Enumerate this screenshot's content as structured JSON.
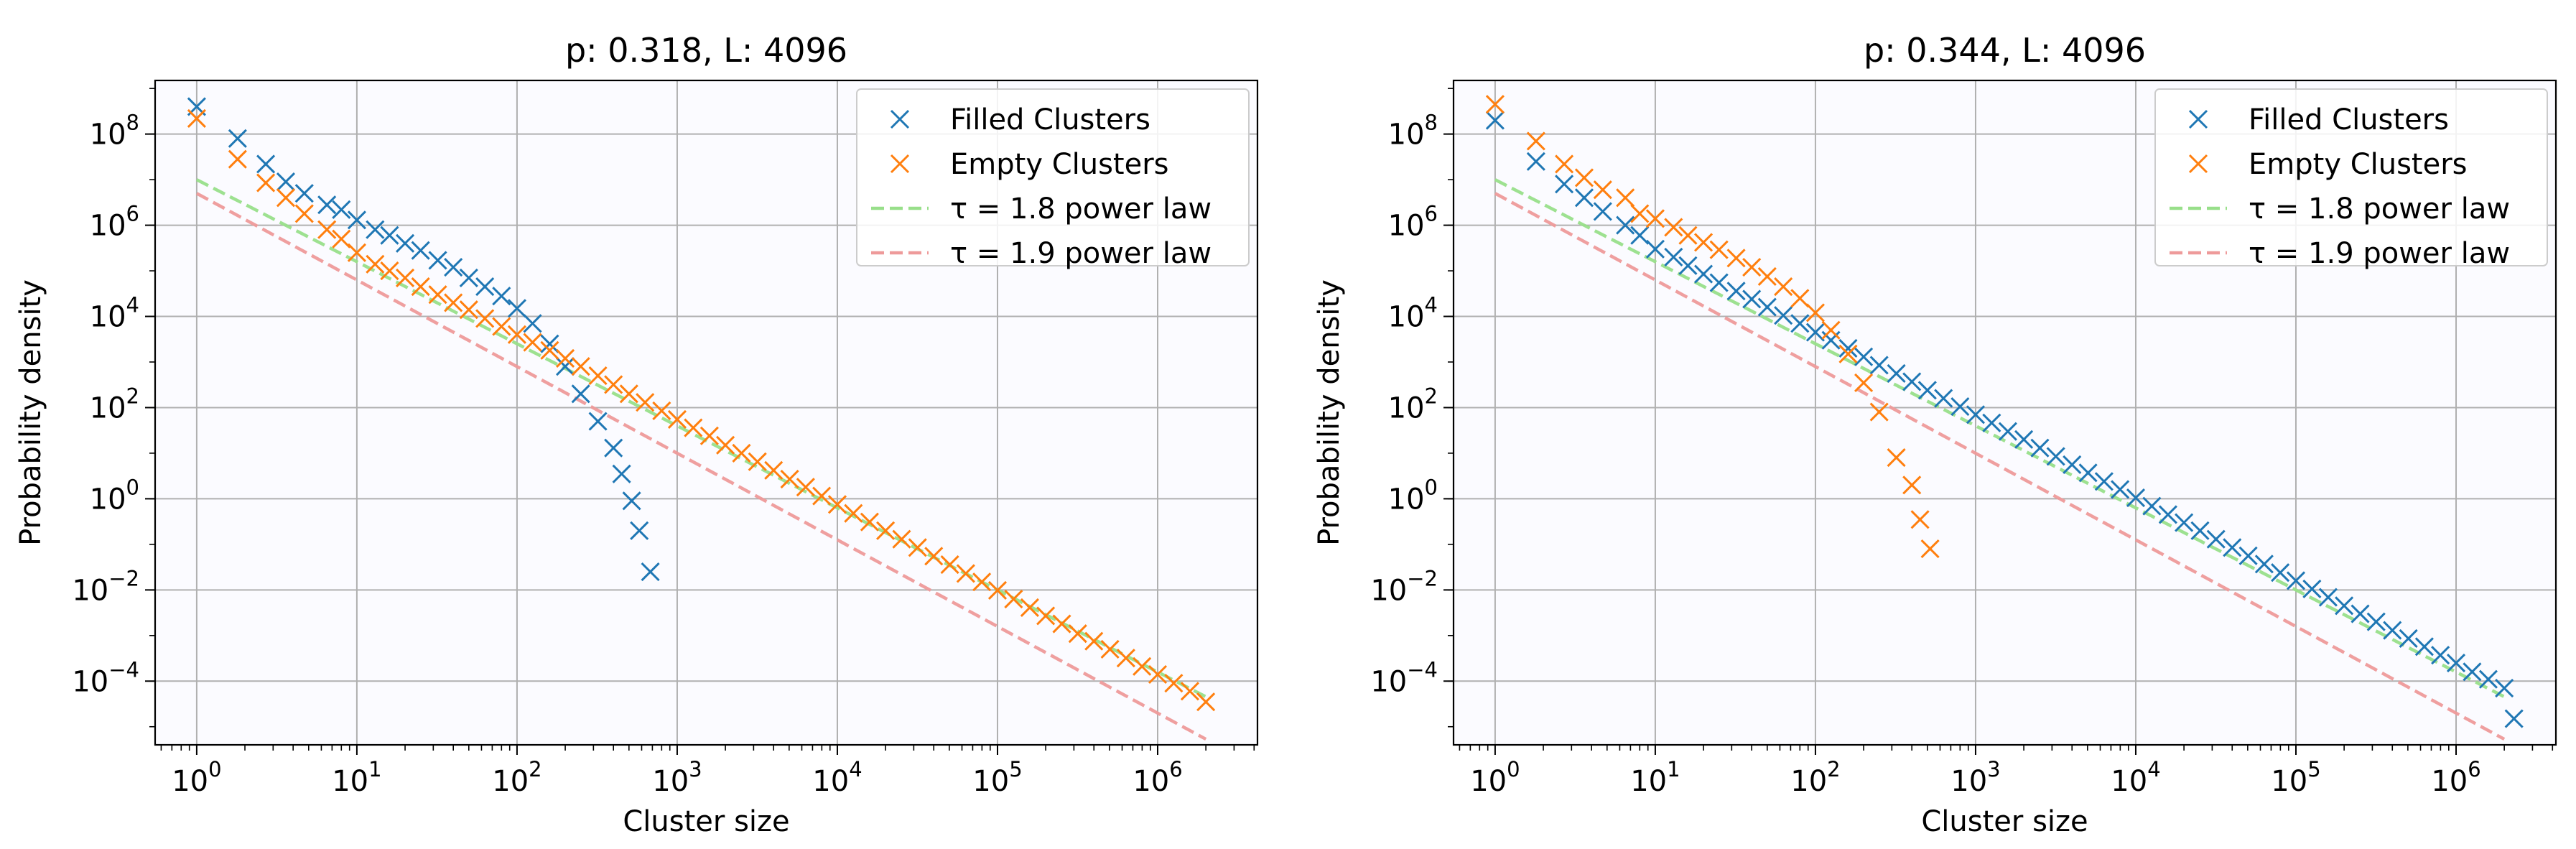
{
  "chart_data": [
    {
      "type": "scatter",
      "title": "p: 0.318,  L: 4096",
      "xlabel": "Cluster size",
      "ylabel": "Probability density",
      "xscale": "log",
      "yscale": "log",
      "xlim": [
        0.55,
        4200000
      ],
      "ylim": [
        4e-06,
        1500000000
      ],
      "grid": true,
      "legend_position": "top-right",
      "x_ticks": [
        {
          "base": "10",
          "exp": "0",
          "v": 1
        },
        {
          "base": "10",
          "exp": "1",
          "v": 10
        },
        {
          "base": "10",
          "exp": "2",
          "v": 100
        },
        {
          "base": "10",
          "exp": "3",
          "v": 1000
        },
        {
          "base": "10",
          "exp": "4",
          "v": 10000
        },
        {
          "base": "10",
          "exp": "5",
          "v": 100000
        },
        {
          "base": "10",
          "exp": "6",
          "v": 1000000
        }
      ],
      "y_ticks": [
        {
          "base": "10",
          "exp": "−4",
          "v": 0.0001
        },
        {
          "base": "10",
          "exp": "−2",
          "v": 0.01
        },
        {
          "base": "10",
          "exp": "0",
          "v": 1
        },
        {
          "base": "10",
          "exp": "2",
          "v": 100
        },
        {
          "base": "10",
          "exp": "4",
          "v": 10000
        },
        {
          "base": "10",
          "exp": "6",
          "v": 1000000
        },
        {
          "base": "10",
          "exp": "8",
          "v": 100000000
        }
      ],
      "series": [
        {
          "name": "Filled Clusters",
          "marker": "x",
          "color": "#1f77b4",
          "points": [
            [
              1,
              400000000
            ],
            [
              1.8,
              80000000
            ],
            [
              2.7,
              22000000
            ],
            [
              3.6,
              9000000
            ],
            [
              4.7,
              5000000
            ],
            [
              6.5,
              2800000
            ],
            [
              8,
              2200000
            ],
            [
              10,
              1300000
            ],
            [
              13,
              800000
            ],
            [
              16,
              600000
            ],
            [
              20,
              400000
            ],
            [
              25,
              280000
            ],
            [
              32,
              170000
            ],
            [
              40,
              120000
            ],
            [
              50,
              70000
            ],
            [
              63,
              45000
            ],
            [
              80,
              28000
            ],
            [
              100,
              15000
            ],
            [
              125,
              7000
            ],
            [
              160,
              2500
            ],
            [
              200,
              800
            ],
            [
              250,
              200
            ],
            [
              320,
              50
            ],
            [
              400,
              13
            ],
            [
              450,
              3.5
            ],
            [
              520,
              0.9
            ],
            [
              580,
              0.2
            ],
            [
              680,
              0.025
            ]
          ]
        },
        {
          "name": "Empty Clusters",
          "marker": "x",
          "color": "#ff7f0e",
          "points": [
            [
              1,
              220000000
            ],
            [
              1.8,
              28000000
            ],
            [
              2.7,
              8500000
            ],
            [
              3.6,
              4000000
            ],
            [
              4.7,
              1800000
            ],
            [
              6.5,
              800000
            ],
            [
              8,
              500000
            ],
            [
              10,
              250000
            ],
            [
              13,
              140000
            ],
            [
              16,
              100000
            ],
            [
              20,
              70000
            ],
            [
              25,
              45000
            ],
            [
              32,
              30000
            ],
            [
              40,
              20000
            ],
            [
              50,
              14000
            ],
            [
              63,
              9000
            ],
            [
              80,
              6000
            ],
            [
              100,
              4000
            ],
            [
              125,
              2700
            ],
            [
              160,
              1800
            ],
            [
              200,
              1200
            ],
            [
              250,
              800
            ],
            [
              320,
              500
            ],
            [
              400,
              320
            ],
            [
              500,
              200
            ],
            [
              630,
              130
            ],
            [
              800,
              85
            ],
            [
              1000,
              55
            ],
            [
              1260,
              36
            ],
            [
              1590,
              24
            ],
            [
              2000,
              15
            ],
            [
              2520,
              10
            ],
            [
              3170,
              6.5
            ],
            [
              4000,
              4.2
            ],
            [
              5040,
              2.7
            ],
            [
              6340,
              1.8
            ],
            [
              7980,
              1.15
            ],
            [
              10000,
              0.75
            ],
            [
              12600,
              0.48
            ],
            [
              15900,
              0.31
            ],
            [
              20000,
              0.2
            ],
            [
              25200,
              0.13
            ],
            [
              31700,
              0.085
            ],
            [
              40000,
              0.055
            ],
            [
              50400,
              0.036
            ],
            [
              63400,
              0.023
            ],
            [
              79800,
              0.015
            ],
            [
              100000,
              0.0098
            ],
            [
              126000,
              0.0063
            ],
            [
              159000,
              0.0041
            ],
            [
              200000,
              0.0027
            ],
            [
              252000,
              0.0018
            ],
            [
              317000,
              0.0011
            ],
            [
              400000,
              0.00075
            ],
            [
              504000,
              0.0005
            ],
            [
              634000,
              0.00032
            ],
            [
              798000,
              0.00021
            ],
            [
              1000000,
              0.00014
            ],
            [
              1260000,
              9e-05
            ],
            [
              1590000,
              6e-05
            ],
            [
              2000000,
              3.5e-05
            ]
          ]
        },
        {
          "name": "τ = 1.8 power law",
          "type": "line",
          "style": "dashed",
          "color": "#98df8a",
          "tau": 1.8,
          "amplitude": 10000000
        },
        {
          "name": "τ = 1.9 power law",
          "type": "line",
          "style": "dashed",
          "color": "#ee9a9a",
          "tau": 1.9,
          "amplitude": 5000000
        }
      ]
    },
    {
      "type": "scatter",
      "title": "p: 0.344,  L: 4096",
      "xlabel": "Cluster size",
      "ylabel": "Probability density",
      "xscale": "log",
      "yscale": "log",
      "xlim": [
        0.55,
        4200000
      ],
      "ylim": [
        4e-06,
        1500000000
      ],
      "grid": true,
      "legend_position": "top-right",
      "x_ticks": [
        {
          "base": "10",
          "exp": "0",
          "v": 1
        },
        {
          "base": "10",
          "exp": "1",
          "v": 10
        },
        {
          "base": "10",
          "exp": "2",
          "v": 100
        },
        {
          "base": "10",
          "exp": "3",
          "v": 1000
        },
        {
          "base": "10",
          "exp": "4",
          "v": 10000
        },
        {
          "base": "10",
          "exp": "5",
          "v": 100000
        },
        {
          "base": "10",
          "exp": "6",
          "v": 1000000
        }
      ],
      "y_ticks": [
        {
          "base": "10",
          "exp": "−4",
          "v": 0.0001
        },
        {
          "base": "10",
          "exp": "−2",
          "v": 0.01
        },
        {
          "base": "10",
          "exp": "0",
          "v": 1
        },
        {
          "base": "10",
          "exp": "2",
          "v": 100
        },
        {
          "base": "10",
          "exp": "4",
          "v": 10000
        },
        {
          "base": "10",
          "exp": "6",
          "v": 1000000
        },
        {
          "base": "10",
          "exp": "8",
          "v": 100000000
        }
      ],
      "series": [
        {
          "name": "Filled Clusters",
          "marker": "x",
          "color": "#1f77b4",
          "points": [
            [
              1,
              200000000
            ],
            [
              1.8,
              25000000
            ],
            [
              2.7,
              8000000
            ],
            [
              3.6,
              4000000
            ],
            [
              4.7,
              2000000
            ],
            [
              6.5,
              1000000
            ],
            [
              8,
              600000
            ],
            [
              10,
              300000
            ],
            [
              13,
              200000
            ],
            [
              16,
              130000
            ],
            [
              20,
              85000
            ],
            [
              25,
              55000
            ],
            [
              32,
              36000
            ],
            [
              40,
              24000
            ],
            [
              50,
              16000
            ],
            [
              63,
              10500
            ],
            [
              80,
              7000
            ],
            [
              100,
              4500
            ],
            [
              125,
              3000
            ],
            [
              160,
              2000
            ],
            [
              200,
              1300
            ],
            [
              250,
              850
            ],
            [
              320,
              560
            ],
            [
              400,
              370
            ],
            [
              500,
              240
            ],
            [
              630,
              160
            ],
            [
              800,
              105
            ],
            [
              1000,
              70
            ],
            [
              1260,
              46
            ],
            [
              1590,
              30
            ],
            [
              2000,
              20
            ],
            [
              2520,
              13
            ],
            [
              3170,
              8.5
            ],
            [
              4000,
              5.6
            ],
            [
              5040,
              3.7
            ],
            [
              6340,
              2.4
            ],
            [
              7980,
              1.6
            ],
            [
              10000,
              1.05
            ],
            [
              12600,
              0.69
            ],
            [
              15900,
              0.45
            ],
            [
              20000,
              0.3
            ],
            [
              25200,
              0.2
            ],
            [
              31700,
              0.13
            ],
            [
              40000,
              0.085
            ],
            [
              50400,
              0.056
            ],
            [
              63400,
              0.037
            ],
            [
              79800,
              0.024
            ],
            [
              100000,
              0.016
            ],
            [
              126000,
              0.0105
            ],
            [
              159000,
              0.0069
            ],
            [
              200000,
              0.0045
            ],
            [
              252000,
              0.003
            ],
            [
              317000,
              0.002
            ],
            [
              400000,
              0.0013
            ],
            [
              504000,
              0.00086
            ],
            [
              634000,
              0.00057
            ],
            [
              798000,
              0.00037
            ],
            [
              1000000,
              0.00025
            ],
            [
              1260000,
              0.00016
            ],
            [
              1590000,
              0.00011
            ],
            [
              2000000,
              7e-05
            ],
            [
              2300000,
              1.5e-05
            ]
          ]
        },
        {
          "name": "Empty Clusters",
          "marker": "x",
          "color": "#ff7f0e",
          "points": [
            [
              1,
              450000000
            ],
            [
              1.8,
              70000000
            ],
            [
              2.7,
              22000000
            ],
            [
              3.6,
              11000000
            ],
            [
              4.7,
              6000000
            ],
            [
              6.5,
              4000000
            ],
            [
              8,
              1800000
            ],
            [
              10,
              1400000
            ],
            [
              13,
              900000
            ],
            [
              16,
              600000
            ],
            [
              20,
              420000
            ],
            [
              25,
              290000
            ],
            [
              32,
              190000
            ],
            [
              40,
              120000
            ],
            [
              50,
              75000
            ],
            [
              63,
              45000
            ],
            [
              80,
              25000
            ],
            [
              100,
              12000
            ],
            [
              125,
              5000
            ],
            [
              160,
              1500
            ],
            [
              200,
              350
            ],
            [
              250,
              80
            ],
            [
              320,
              8
            ],
            [
              400,
              2
            ],
            [
              450,
              0.35
            ],
            [
              520,
              0.08
            ]
          ]
        },
        {
          "name": "τ = 1.8 power law",
          "type": "line",
          "style": "dashed",
          "color": "#98df8a",
          "tau": 1.8,
          "amplitude": 10000000
        },
        {
          "name": "τ = 1.9 power law",
          "type": "line",
          "style": "dashed",
          "color": "#ee9a9a",
          "tau": 1.9,
          "amplitude": 5000000
        }
      ]
    }
  ]
}
